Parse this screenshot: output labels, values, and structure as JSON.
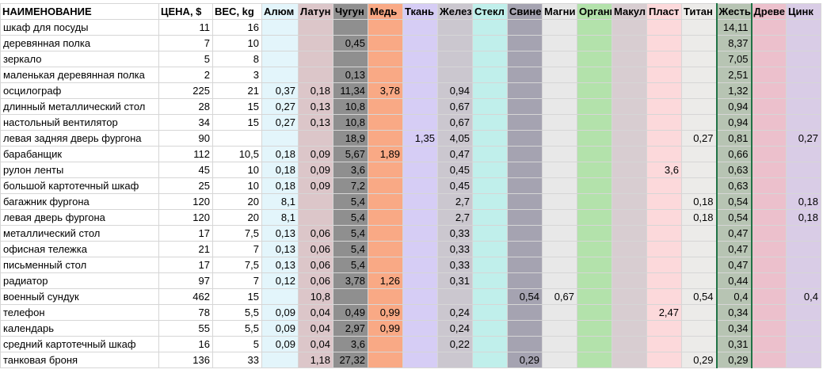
{
  "table": {
    "header": [
      "НАИМЕНОВАНИЕ",
      "ЦЕНА, $",
      "ВЕС, kg",
      "Алюм",
      "Латун",
      "Чугун",
      "Медь",
      "Ткань",
      "Желез",
      "Стекл",
      "Свине",
      "Магни",
      "Органи",
      "Макул",
      "Пласт",
      "Титан",
      "Жесть",
      "Древе",
      "Цинк"
    ],
    "rows": [
      [
        "шкаф для посуды",
        "11",
        "16",
        null,
        null,
        null,
        null,
        null,
        null,
        null,
        null,
        null,
        null,
        null,
        null,
        null,
        "14,11",
        null,
        null
      ],
      [
        "деревянная полка",
        "7",
        "10",
        null,
        null,
        "0,45",
        null,
        null,
        null,
        null,
        null,
        null,
        null,
        null,
        null,
        null,
        "8,37",
        null,
        null
      ],
      [
        "зеркало",
        "5",
        "8",
        null,
        null,
        null,
        null,
        null,
        null,
        null,
        null,
        null,
        null,
        null,
        null,
        null,
        "7,05",
        null,
        null
      ],
      [
        "маленькая деревянная полка",
        "2",
        "3",
        null,
        null,
        "0,13",
        null,
        null,
        null,
        null,
        null,
        null,
        null,
        null,
        null,
        null,
        "2,51",
        null,
        null
      ],
      [
        "осцилограф",
        "225",
        "21",
        "0,37",
        "0,18",
        "11,34",
        "3,78",
        null,
        "0,94",
        null,
        null,
        null,
        null,
        null,
        null,
        null,
        "1,32",
        null,
        null
      ],
      [
        "длинный металлический стол",
        "28",
        "15",
        "0,27",
        "0,13",
        "10,8",
        null,
        null,
        "0,67",
        null,
        null,
        null,
        null,
        null,
        null,
        null,
        "0,94",
        null,
        null
      ],
      [
        "настольный вентилятор",
        "34",
        "15",
        "0,27",
        "0,13",
        "10,8",
        null,
        null,
        "0,67",
        null,
        null,
        null,
        null,
        null,
        null,
        null,
        "0,94",
        null,
        null
      ],
      [
        "левая задняя дверь фургона",
        "90",
        null,
        null,
        null,
        "18,9",
        null,
        "1,35",
        "4,05",
        null,
        null,
        null,
        null,
        null,
        null,
        "0,27",
        "0,81",
        null,
        "0,27"
      ],
      [
        "барабанщик",
        "112",
        "10,5",
        "0,18",
        "0,09",
        "5,67",
        "1,89",
        null,
        "0,47",
        null,
        null,
        null,
        null,
        null,
        null,
        null,
        "0,66",
        null,
        null
      ],
      [
        "рулон ленты",
        "45",
        "10",
        "0,18",
        "0,09",
        "3,6",
        null,
        null,
        "0,45",
        null,
        null,
        null,
        null,
        null,
        "3,6",
        null,
        "0,63",
        null,
        null
      ],
      [
        "большой картотечный шкаф",
        "25",
        "10",
        "0,18",
        "0,09",
        "7,2",
        null,
        null,
        "0,45",
        null,
        null,
        null,
        null,
        null,
        null,
        null,
        "0,63",
        null,
        null
      ],
      [
        "багажник фургона",
        "120",
        "20",
        "8,1",
        null,
        "5,4",
        null,
        null,
        "2,7",
        null,
        null,
        null,
        null,
        null,
        null,
        "0,18",
        "0,54",
        null,
        "0,18"
      ],
      [
        "левая дверь фургона",
        "120",
        "20",
        "8,1",
        null,
        "5,4",
        null,
        null,
        "2,7",
        null,
        null,
        null,
        null,
        null,
        null,
        "0,18",
        "0,54",
        null,
        "0,18"
      ],
      [
        "металлический стол",
        "17",
        "7,5",
        "0,13",
        "0,06",
        "5,4",
        null,
        null,
        "0,33",
        null,
        null,
        null,
        null,
        null,
        null,
        null,
        "0,47",
        null,
        null
      ],
      [
        "офисная тележка",
        "21",
        "7",
        "0,13",
        "0,06",
        "5,4",
        null,
        null,
        "0,33",
        null,
        null,
        null,
        null,
        null,
        null,
        null,
        "0,47",
        null,
        null
      ],
      [
        "письменный стол",
        "17",
        "7,5",
        "0,13",
        "0,06",
        "5,4",
        null,
        null,
        "0,33",
        null,
        null,
        null,
        null,
        null,
        null,
        null,
        "0,47",
        null,
        null
      ],
      [
        "радиатор",
        "97",
        "7",
        "0,12",
        "0,06",
        "3,78",
        "1,26",
        null,
        "0,31",
        null,
        null,
        null,
        null,
        null,
        null,
        null,
        "0,44",
        null,
        null
      ],
      [
        "военный сундук",
        "462",
        "15",
        null,
        "10,8",
        null,
        null,
        null,
        null,
        null,
        "0,54",
        "0,67",
        null,
        null,
        null,
        "0,54",
        "0,4",
        null,
        "0,4"
      ],
      [
        "телефон",
        "78",
        "5,5",
        "0,09",
        "0,04",
        "0,49",
        "0,99",
        null,
        "0,24",
        null,
        null,
        null,
        null,
        null,
        "2,47",
        null,
        "0,34",
        null,
        null
      ],
      [
        "календарь",
        "55",
        "5,5",
        "0,09",
        "0,04",
        "2,97",
        "0,99",
        null,
        "0,24",
        null,
        null,
        null,
        null,
        null,
        null,
        null,
        "0,34",
        null,
        null
      ],
      [
        "средний картотечный шкаф",
        "16",
        "5",
        "0,09",
        "0,04",
        "3,6",
        null,
        null,
        "0,22",
        null,
        null,
        null,
        null,
        null,
        null,
        null,
        "0,31",
        null,
        null
      ],
      [
        "танковая броня",
        "136",
        "33",
        null,
        "1,18",
        "27,32",
        null,
        null,
        null,
        null,
        "0,29",
        null,
        null,
        null,
        null,
        "0,29",
        "0,29",
        null,
        null
      ]
    ]
  }
}
